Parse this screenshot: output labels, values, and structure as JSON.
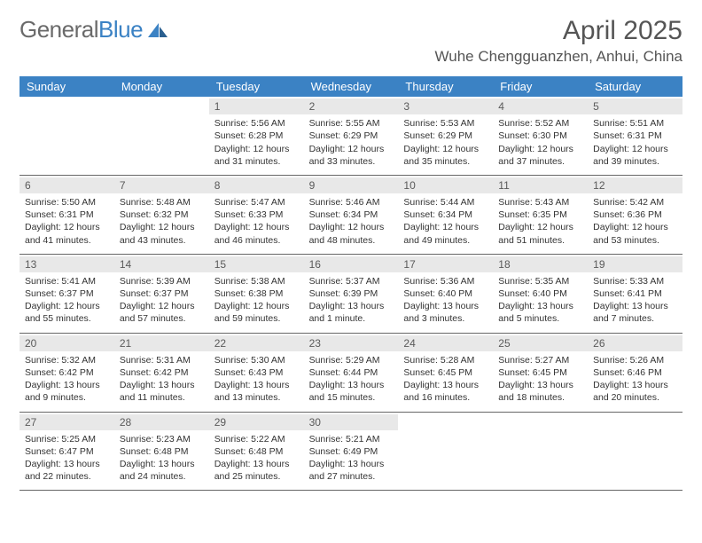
{
  "brand": {
    "text1": "General",
    "text2": "Blue"
  },
  "title": "April 2025",
  "location": "Wuhe Chengguanzhen, Anhui, China",
  "weekdays": [
    "Sunday",
    "Monday",
    "Tuesday",
    "Wednesday",
    "Thursday",
    "Friday",
    "Saturday"
  ],
  "colors": {
    "header_bg": "#3b82c4",
    "header_text": "#ffffff",
    "daynum_bg": "#e8e8e8",
    "text": "#333333",
    "title_text": "#555555",
    "border": "#666666"
  },
  "weeks": [
    [
      {
        "n": "",
        "sr": "",
        "ss": "",
        "dl": ""
      },
      {
        "n": "",
        "sr": "",
        "ss": "",
        "dl": ""
      },
      {
        "n": "1",
        "sr": "Sunrise: 5:56 AM",
        "ss": "Sunset: 6:28 PM",
        "dl": "Daylight: 12 hours and 31 minutes."
      },
      {
        "n": "2",
        "sr": "Sunrise: 5:55 AM",
        "ss": "Sunset: 6:29 PM",
        "dl": "Daylight: 12 hours and 33 minutes."
      },
      {
        "n": "3",
        "sr": "Sunrise: 5:53 AM",
        "ss": "Sunset: 6:29 PM",
        "dl": "Daylight: 12 hours and 35 minutes."
      },
      {
        "n": "4",
        "sr": "Sunrise: 5:52 AM",
        "ss": "Sunset: 6:30 PM",
        "dl": "Daylight: 12 hours and 37 minutes."
      },
      {
        "n": "5",
        "sr": "Sunrise: 5:51 AM",
        "ss": "Sunset: 6:31 PM",
        "dl": "Daylight: 12 hours and 39 minutes."
      }
    ],
    [
      {
        "n": "6",
        "sr": "Sunrise: 5:50 AM",
        "ss": "Sunset: 6:31 PM",
        "dl": "Daylight: 12 hours and 41 minutes."
      },
      {
        "n": "7",
        "sr": "Sunrise: 5:48 AM",
        "ss": "Sunset: 6:32 PM",
        "dl": "Daylight: 12 hours and 43 minutes."
      },
      {
        "n": "8",
        "sr": "Sunrise: 5:47 AM",
        "ss": "Sunset: 6:33 PM",
        "dl": "Daylight: 12 hours and 46 minutes."
      },
      {
        "n": "9",
        "sr": "Sunrise: 5:46 AM",
        "ss": "Sunset: 6:34 PM",
        "dl": "Daylight: 12 hours and 48 minutes."
      },
      {
        "n": "10",
        "sr": "Sunrise: 5:44 AM",
        "ss": "Sunset: 6:34 PM",
        "dl": "Daylight: 12 hours and 49 minutes."
      },
      {
        "n": "11",
        "sr": "Sunrise: 5:43 AM",
        "ss": "Sunset: 6:35 PM",
        "dl": "Daylight: 12 hours and 51 minutes."
      },
      {
        "n": "12",
        "sr": "Sunrise: 5:42 AM",
        "ss": "Sunset: 6:36 PM",
        "dl": "Daylight: 12 hours and 53 minutes."
      }
    ],
    [
      {
        "n": "13",
        "sr": "Sunrise: 5:41 AM",
        "ss": "Sunset: 6:37 PM",
        "dl": "Daylight: 12 hours and 55 minutes."
      },
      {
        "n": "14",
        "sr": "Sunrise: 5:39 AM",
        "ss": "Sunset: 6:37 PM",
        "dl": "Daylight: 12 hours and 57 minutes."
      },
      {
        "n": "15",
        "sr": "Sunrise: 5:38 AM",
        "ss": "Sunset: 6:38 PM",
        "dl": "Daylight: 12 hours and 59 minutes."
      },
      {
        "n": "16",
        "sr": "Sunrise: 5:37 AM",
        "ss": "Sunset: 6:39 PM",
        "dl": "Daylight: 13 hours and 1 minute."
      },
      {
        "n": "17",
        "sr": "Sunrise: 5:36 AM",
        "ss": "Sunset: 6:40 PM",
        "dl": "Daylight: 13 hours and 3 minutes."
      },
      {
        "n": "18",
        "sr": "Sunrise: 5:35 AM",
        "ss": "Sunset: 6:40 PM",
        "dl": "Daylight: 13 hours and 5 minutes."
      },
      {
        "n": "19",
        "sr": "Sunrise: 5:33 AM",
        "ss": "Sunset: 6:41 PM",
        "dl": "Daylight: 13 hours and 7 minutes."
      }
    ],
    [
      {
        "n": "20",
        "sr": "Sunrise: 5:32 AM",
        "ss": "Sunset: 6:42 PM",
        "dl": "Daylight: 13 hours and 9 minutes."
      },
      {
        "n": "21",
        "sr": "Sunrise: 5:31 AM",
        "ss": "Sunset: 6:42 PM",
        "dl": "Daylight: 13 hours and 11 minutes."
      },
      {
        "n": "22",
        "sr": "Sunrise: 5:30 AM",
        "ss": "Sunset: 6:43 PM",
        "dl": "Daylight: 13 hours and 13 minutes."
      },
      {
        "n": "23",
        "sr": "Sunrise: 5:29 AM",
        "ss": "Sunset: 6:44 PM",
        "dl": "Daylight: 13 hours and 15 minutes."
      },
      {
        "n": "24",
        "sr": "Sunrise: 5:28 AM",
        "ss": "Sunset: 6:45 PM",
        "dl": "Daylight: 13 hours and 16 minutes."
      },
      {
        "n": "25",
        "sr": "Sunrise: 5:27 AM",
        "ss": "Sunset: 6:45 PM",
        "dl": "Daylight: 13 hours and 18 minutes."
      },
      {
        "n": "26",
        "sr": "Sunrise: 5:26 AM",
        "ss": "Sunset: 6:46 PM",
        "dl": "Daylight: 13 hours and 20 minutes."
      }
    ],
    [
      {
        "n": "27",
        "sr": "Sunrise: 5:25 AM",
        "ss": "Sunset: 6:47 PM",
        "dl": "Daylight: 13 hours and 22 minutes."
      },
      {
        "n": "28",
        "sr": "Sunrise: 5:23 AM",
        "ss": "Sunset: 6:48 PM",
        "dl": "Daylight: 13 hours and 24 minutes."
      },
      {
        "n": "29",
        "sr": "Sunrise: 5:22 AM",
        "ss": "Sunset: 6:48 PM",
        "dl": "Daylight: 13 hours and 25 minutes."
      },
      {
        "n": "30",
        "sr": "Sunrise: 5:21 AM",
        "ss": "Sunset: 6:49 PM",
        "dl": "Daylight: 13 hours and 27 minutes."
      },
      {
        "n": "",
        "sr": "",
        "ss": "",
        "dl": ""
      },
      {
        "n": "",
        "sr": "",
        "ss": "",
        "dl": ""
      },
      {
        "n": "",
        "sr": "",
        "ss": "",
        "dl": ""
      }
    ]
  ]
}
